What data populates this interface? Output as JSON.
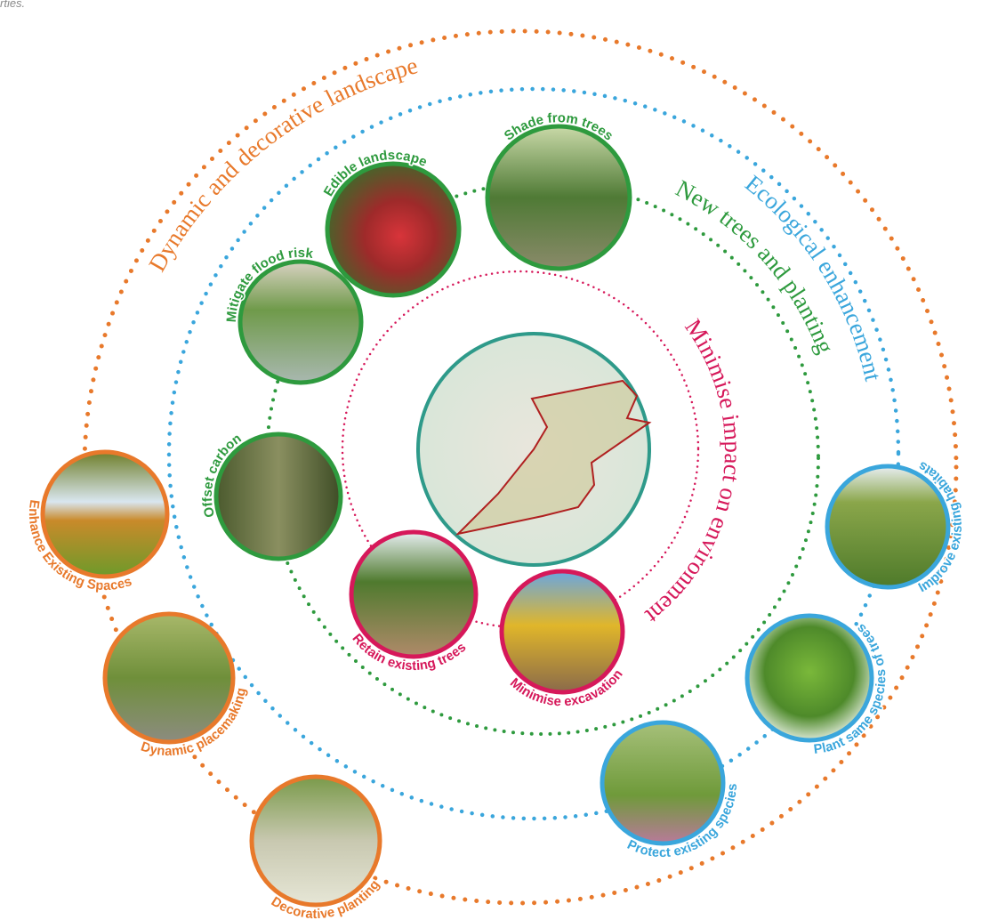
{
  "header_fragment": "rties.",
  "rings": [
    {
      "label": "Dynamic and decorative landscape"
    },
    {
      "label": "Ecological enhancement"
    },
    {
      "label": "New trees and planting"
    },
    {
      "label": "Minimise impact on environment"
    }
  ],
  "nodes": [
    {
      "label": "Shade from trees"
    },
    {
      "label": "Edible landscape"
    },
    {
      "label": "Mitigate flood risk"
    },
    {
      "label": "Offset carbon"
    },
    {
      "label": "Enhance Existing Spaces"
    },
    {
      "label": "Dynamic placemaking"
    },
    {
      "label": "Decorative planting"
    },
    {
      "label": "Retain existing trees"
    },
    {
      "label": "Minimise excavation"
    },
    {
      "label": "Protect existing species"
    },
    {
      "label": "Plant same species of trees"
    },
    {
      "label": "Improve existing habitats"
    }
  ]
}
